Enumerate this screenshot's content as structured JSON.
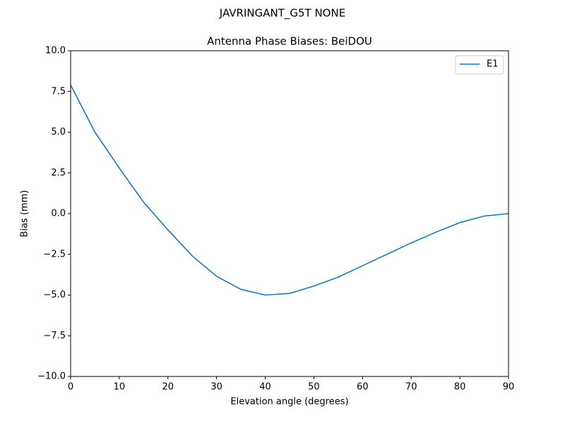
{
  "chart_data": {
    "type": "line",
    "suptitle": "JAVRINGANT_G5T  NONE",
    "title": "Antenna Phase Biases: BeiDOU",
    "xlabel": "Elevation angle (degrees)",
    "ylabel": "Bias (mm)",
    "x": [
      0,
      5,
      10,
      15,
      20,
      25,
      30,
      35,
      40,
      45,
      50,
      55,
      60,
      65,
      70,
      75,
      80,
      85,
      90
    ],
    "series": [
      {
        "name": "E1",
        "color": "#1f77b4",
        "values": [
          7.9,
          5.0,
          2.8,
          0.7,
          -1.0,
          -2.6,
          -3.85,
          -4.65,
          -5.0,
          -4.9,
          -4.45,
          -3.9,
          -3.2,
          -2.5,
          -1.8,
          -1.15,
          -0.55,
          -0.15,
          0.0
        ]
      }
    ],
    "xlim": [
      0,
      90
    ],
    "xticks": [
      0,
      10,
      20,
      30,
      40,
      50,
      60,
      70,
      80,
      90
    ],
    "ylim": [
      -10,
      10
    ],
    "yticks": [
      {
        "value": -10,
        "label": "−10.0"
      },
      {
        "value": -7.5,
        "label": "−7.5"
      },
      {
        "value": -5,
        "label": "−5.0"
      },
      {
        "value": -2.5,
        "label": "−2.5"
      },
      {
        "value": 0,
        "label": "0.0"
      },
      {
        "value": 2.5,
        "label": "2.5"
      },
      {
        "value": 5,
        "label": "5.0"
      },
      {
        "value": 7.5,
        "label": "7.5"
      },
      {
        "value": 10,
        "label": "10.0"
      }
    ],
    "legend": "upper right",
    "grid": false
  }
}
